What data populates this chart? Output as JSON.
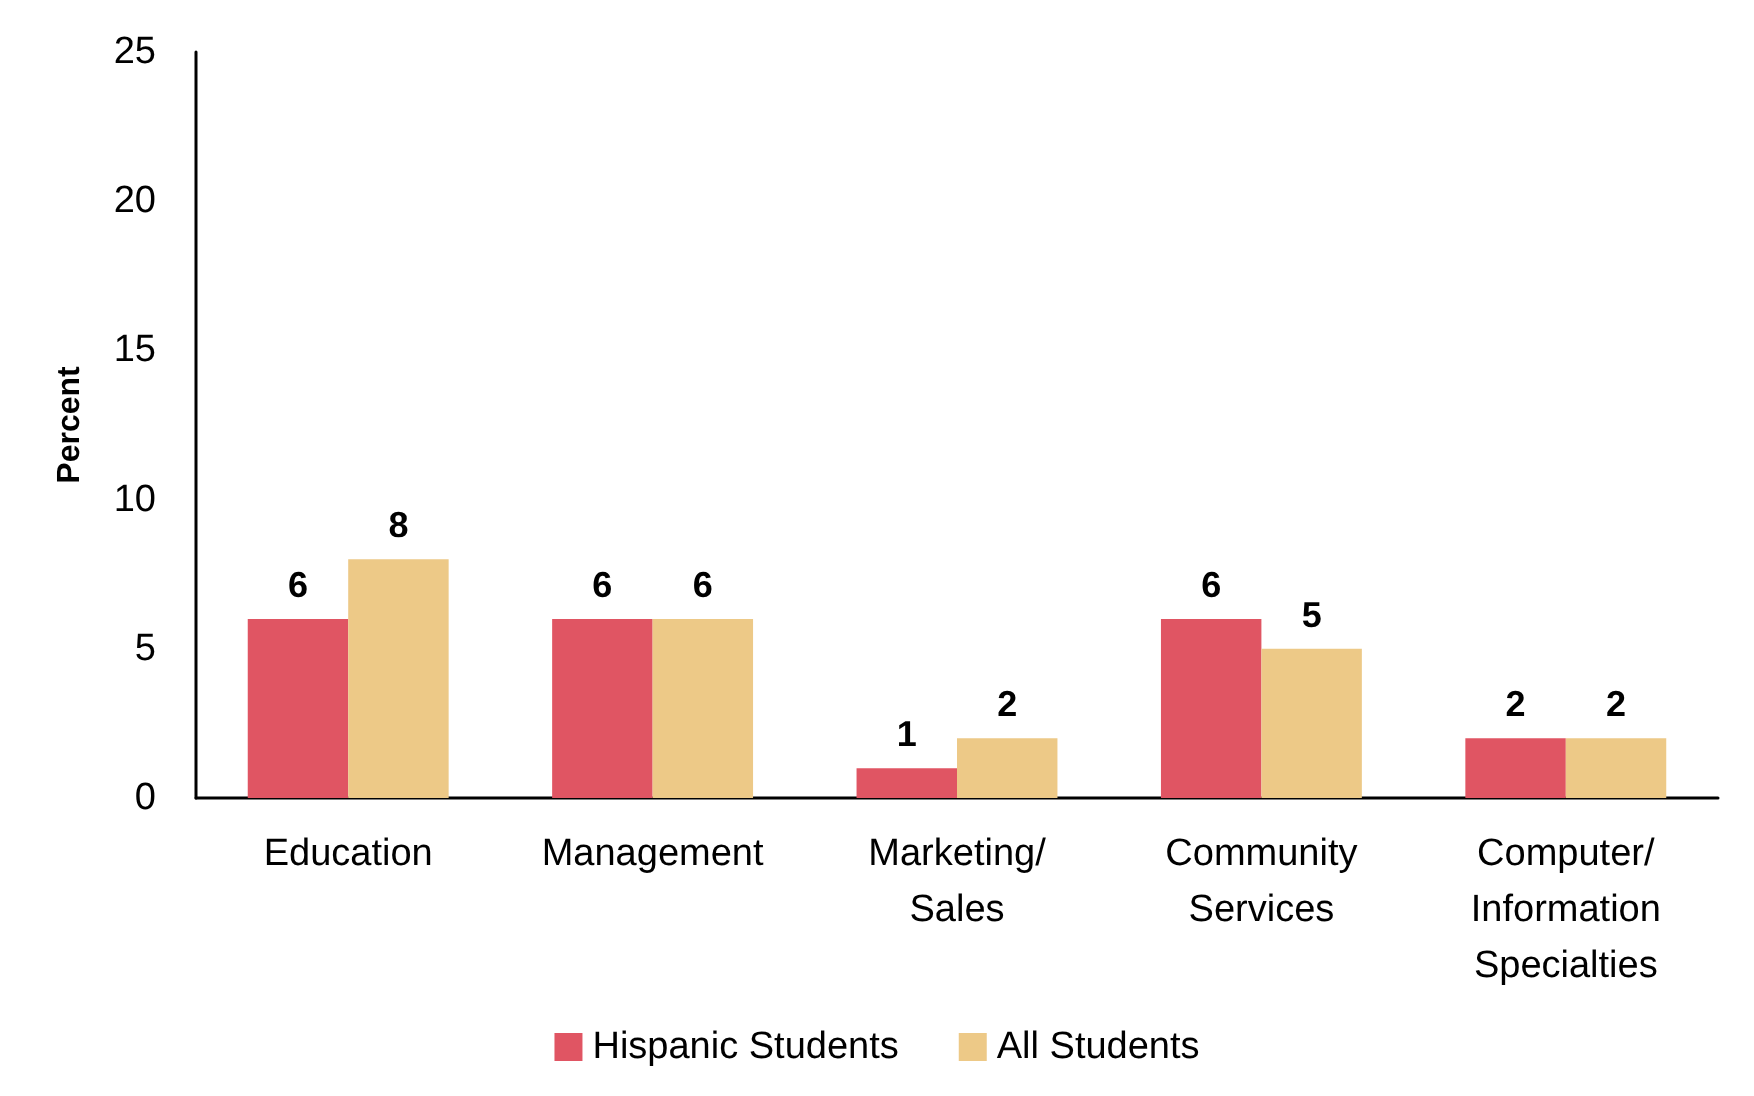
{
  "chart_data": {
    "type": "bar",
    "ylabel": "Percent",
    "categories": [
      "Education",
      "Management",
      "Marketing/\nSales",
      "Community\nServices",
      "Computer/\nInformation\nSpecialties"
    ],
    "series": [
      {
        "name": "Hispanic Students",
        "color": "#e05563",
        "values": [
          6,
          6,
          1,
          6,
          2
        ]
      },
      {
        "name": "All Students",
        "color": "#edc987",
        "values": [
          8,
          6,
          2,
          5,
          2
        ]
      }
    ],
    "ylim": [
      0,
      25
    ],
    "yticks": [
      0,
      5,
      10,
      15,
      20,
      25
    ],
    "grid": false,
    "legend": "bottom",
    "data_labels": true
  }
}
